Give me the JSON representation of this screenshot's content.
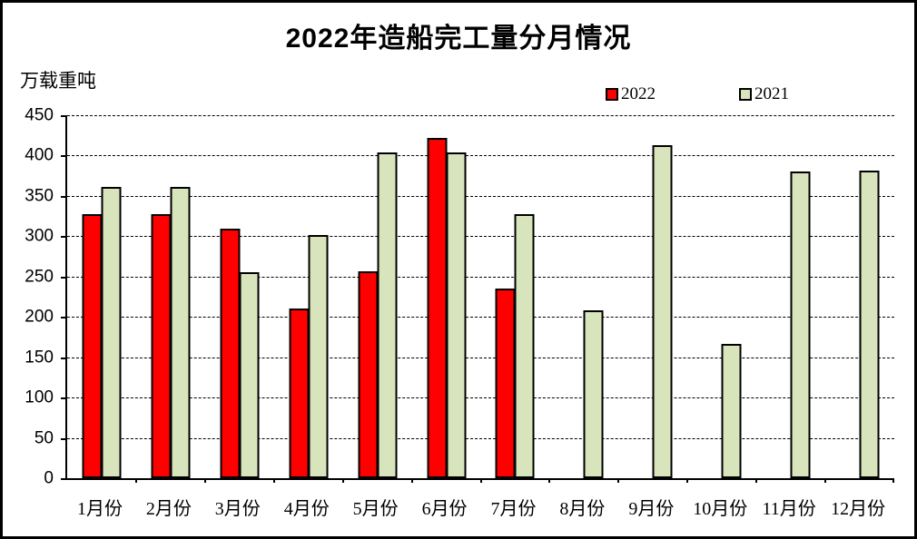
{
  "chart_data": {
    "type": "bar",
    "title": "2022年造船完工量分月情况",
    "ylabel": "万载重吨",
    "categories": [
      "1月份",
      "2月份",
      "3月份",
      "4月份",
      "5月份",
      "6月份",
      "7月份",
      "8月份",
      "9月份",
      "10月份",
      "11月份",
      "12月份"
    ],
    "series": [
      {
        "name": "2022",
        "color": "#FF0000",
        "values": [
          327,
          327,
          309,
          210,
          256,
          422,
          235,
          null,
          null,
          null,
          null,
          null
        ]
      },
      {
        "name": "2021",
        "color": "#D8E4BC",
        "values": [
          361,
          361,
          255,
          302,
          404,
          404,
          327,
          208,
          413,
          166,
          380,
          381
        ]
      }
    ],
    "ylim": [
      0,
      450
    ],
    "ytick_interval": 50,
    "grid": "horizontal-dashed",
    "legend_position": "top-right",
    "bar_border_color": "#000000",
    "frame_color": "#000000",
    "background": "#FFFFFF"
  }
}
